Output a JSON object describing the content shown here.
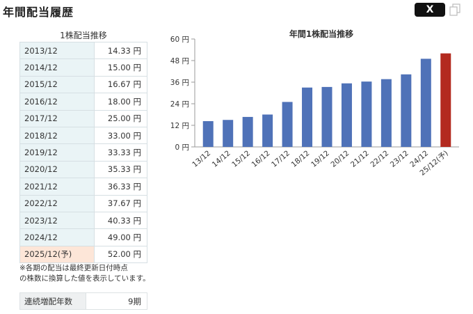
{
  "header": {
    "title": "年間配当履歴",
    "share_x_label": "X",
    "share_icon": "x-logo-icon",
    "copy_icon": "copy-icon"
  },
  "table": {
    "title": "1株配当推移",
    "rows": [
      {
        "year": "2013/12",
        "value": "14.33 円"
      },
      {
        "year": "2014/12",
        "value": "15.00 円"
      },
      {
        "year": "2015/12",
        "value": "16.67 円"
      },
      {
        "year": "2016/12",
        "value": "18.00 円"
      },
      {
        "year": "2017/12",
        "value": "25.00 円"
      },
      {
        "year": "2018/12",
        "value": "33.00 円"
      },
      {
        "year": "2019/12",
        "value": "33.33 円"
      },
      {
        "year": "2020/12",
        "value": "35.33 円"
      },
      {
        "year": "2021/12",
        "value": "36.33 円"
      },
      {
        "year": "2022/12",
        "value": "37.67 円"
      },
      {
        "year": "2023/12",
        "value": "40.33 円"
      },
      {
        "year": "2024/12",
        "value": "49.00 円"
      },
      {
        "year": "2025/12(予)",
        "value": "52.00 円"
      }
    ],
    "note_line1": "※各期の配当は最終更新日付時点",
    "note_line2": "の株数に換算した値を表示しています。",
    "streak_label": "連続増配年数",
    "streak_value": "9期"
  },
  "chart_data": {
    "type": "bar",
    "title": "年間1株配当推移",
    "categories": [
      "13/12",
      "14/12",
      "15/12",
      "16/12",
      "17/12",
      "18/12",
      "19/12",
      "20/12",
      "21/12",
      "22/12",
      "23/12",
      "24/12",
      "25/12(予)"
    ],
    "values": [
      14.33,
      15.0,
      16.67,
      18.0,
      25.0,
      33.0,
      33.33,
      35.33,
      36.33,
      37.67,
      40.33,
      49.0,
      52.0
    ],
    "ylim": [
      0,
      60
    ],
    "yticks": [
      0,
      12,
      24,
      36,
      48,
      60
    ],
    "ytick_labels": [
      "0 円",
      "12 円",
      "24 円",
      "36 円",
      "48 円",
      "60 円"
    ],
    "bar_colors": {
      "actual": "#4f72b8",
      "forecast": "#b32a1f"
    },
    "forecast_index": 12,
    "grid": "none"
  }
}
